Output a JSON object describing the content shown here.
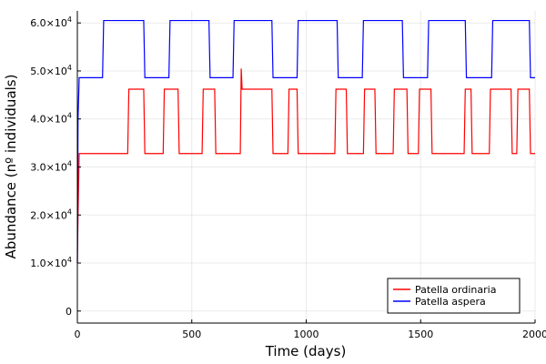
{
  "chart_data": {
    "type": "line",
    "title": "",
    "xlabel": "Time (days)",
    "ylabel": "Abundance (nº individuals)",
    "xlim": [
      0,
      2000
    ],
    "ylim": [
      -2500,
      62500
    ],
    "xticks": [
      0,
      500,
      1000,
      1500,
      2000
    ],
    "xtick_labels": [
      "0",
      "500",
      "1000",
      "1500",
      "2000"
    ],
    "yticks": [
      0,
      10000,
      20000,
      30000,
      40000,
      50000,
      60000
    ],
    "ytick_labels": [
      {
        "mantissa": "0",
        "exp": ""
      },
      {
        "mantissa": "1.0×10",
        "exp": "4"
      },
      {
        "mantissa": "2.0×10",
        "exp": "4"
      },
      {
        "mantissa": "3.0×10",
        "exp": "4"
      },
      {
        "mantissa": "4.0×10",
        "exp": "4"
      },
      {
        "mantissa": "5.0×10",
        "exp": "4"
      },
      {
        "mantissa": "6.0×10",
        "exp": "4"
      }
    ],
    "grid": true,
    "legend_position": "bottom-right",
    "series": [
      {
        "name": "Patella ordinaria",
        "color": "#ff0000",
        "x": [
          0,
          3,
          8,
          12,
          220,
          225,
          290,
          295,
          375,
          380,
          440,
          445,
          545,
          550,
          600,
          605,
          712,
          716,
          720,
          850,
          855,
          920,
          925,
          960,
          965,
          1125,
          1130,
          1175,
          1180,
          1250,
          1255,
          1300,
          1305,
          1380,
          1385,
          1440,
          1445,
          1490,
          1495,
          1545,
          1550,
          1690,
          1695,
          1720,
          1725,
          1800,
          1805,
          1895,
          1900,
          1920,
          1925,
          1975,
          1980,
          2000
        ],
        "y": [
          10000,
          20000,
          32800,
          32800,
          32800,
          46200,
          46200,
          32800,
          32800,
          46200,
          46200,
          32800,
          32800,
          46200,
          46200,
          32800,
          32800,
          50500,
          46200,
          46200,
          32800,
          32800,
          46200,
          46200,
          32800,
          32800,
          46200,
          46200,
          32800,
          32800,
          46200,
          46200,
          32800,
          32800,
          46200,
          46200,
          32800,
          32800,
          46200,
          46200,
          32800,
          32800,
          46200,
          46200,
          32800,
          32800,
          46200,
          46200,
          32800,
          32800,
          46200,
          46200,
          32800,
          32800
        ]
      },
      {
        "name": "Patella aspera",
        "color": "#0000ff",
        "x": [
          0,
          3,
          8,
          10,
          110,
          115,
          290,
          295,
          400,
          405,
          575,
          580,
          680,
          685,
          850,
          855,
          960,
          965,
          1135,
          1140,
          1245,
          1250,
          1420,
          1425,
          1530,
          1535,
          1695,
          1700,
          1810,
          1815,
          1975,
          1980,
          2000
        ],
        "y": [
          10000,
          40000,
          48600,
          48600,
          48600,
          60500,
          60500,
          48600,
          48600,
          60500,
          60500,
          48600,
          48600,
          60500,
          60500,
          48600,
          48600,
          60500,
          60500,
          48600,
          48600,
          60500,
          60500,
          48600,
          48600,
          60500,
          60500,
          48600,
          48600,
          60500,
          60500,
          48600,
          48600
        ]
      }
    ]
  }
}
